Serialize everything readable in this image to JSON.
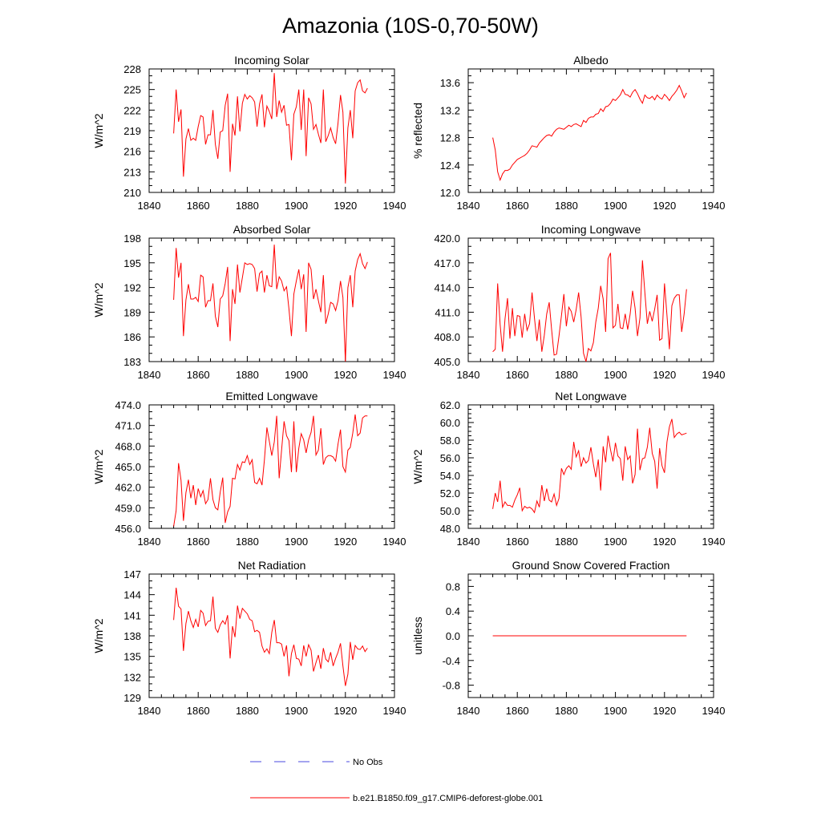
{
  "figure_title": "Amazonia (10S-0,70-50W)",
  "colors": {
    "series": "#ff0000",
    "obs": "#4a4adf",
    "axis": "#000000"
  },
  "legend": {
    "obs_label": "No Obs",
    "model_label": "b.e21.B1850.f09_g17.CMIP6-deforest-globe.001"
  },
  "chart_data": [
    {
      "type": "line",
      "title": "Incoming Solar",
      "ylabel": "W/m^2",
      "xlabel": "",
      "xlim": [
        1840,
        1940
      ],
      "ylim": [
        210,
        228
      ],
      "xticks": [
        1840,
        1860,
        1880,
        1900,
        1920,
        1940
      ],
      "yticks": [
        210,
        213,
        216,
        219,
        222,
        225,
        228
      ],
      "ytick_decimals": 0,
      "yminor": 3,
      "start_year": 1850,
      "values": [
        218.6,
        225.0,
        220.3,
        222.1,
        212.3,
        217.8,
        219.3,
        217.6,
        217.9,
        217.6,
        219.6,
        221.2,
        221.0,
        217.0,
        218.4,
        218.4,
        222.0,
        217.0,
        214.9,
        218.8,
        219.0,
        222.7,
        224.4,
        213.0,
        220.0,
        218.3,
        224.0,
        218.9,
        223.0,
        224.3,
        223.6,
        224.1,
        223.8,
        223.2,
        219.6,
        222.9,
        224.3,
        219.5,
        222.6,
        221.8,
        220.7,
        227.4,
        221.0,
        223.4,
        221.7,
        222.7,
        219.8,
        219.9,
        214.7,
        221.4,
        222.5,
        225.0,
        219.1,
        225.0,
        215.3,
        223.8,
        222.9,
        219.2,
        219.9,
        218.5,
        217.2,
        225.0,
        217.4,
        218.3,
        219.4,
        218.0,
        217.1,
        220.1,
        224.2,
        221.7,
        211.3,
        219.4,
        222.0,
        217.9,
        224.8,
        226.0,
        226.4,
        224.8,
        224.5,
        225.2
      ]
    },
    {
      "type": "line",
      "title": "Albedo",
      "ylabel": "% reflected",
      "xlabel": "",
      "xlim": [
        1840,
        1940
      ],
      "ylim": [
        12.0,
        13.8
      ],
      "xticks": [
        1840,
        1860,
        1880,
        1900,
        1920,
        1940
      ],
      "yticks": [
        12.0,
        12.4,
        12.8,
        13.2,
        13.6
      ],
      "ytick_decimals": 1,
      "yminor": 4,
      "start_year": 1850,
      "values": [
        12.8,
        12.62,
        12.3,
        12.18,
        12.27,
        12.32,
        12.32,
        12.34,
        12.4,
        12.44,
        12.48,
        12.5,
        12.52,
        12.54,
        12.57,
        12.62,
        12.68,
        12.67,
        12.66,
        12.72,
        12.76,
        12.8,
        12.83,
        12.84,
        12.82,
        12.88,
        12.92,
        12.94,
        12.93,
        12.92,
        12.95,
        12.98,
        12.96,
        12.99,
        13.0,
        12.98,
        12.96,
        13.05,
        13.02,
        13.08,
        13.1,
        13.1,
        13.14,
        13.15,
        13.22,
        13.18,
        13.25,
        13.26,
        13.3,
        13.36,
        13.34,
        13.38,
        13.42,
        13.5,
        13.43,
        13.42,
        13.39,
        13.46,
        13.5,
        13.44,
        13.36,
        13.3,
        13.42,
        13.38,
        13.37,
        13.4,
        13.35,
        13.42,
        13.38,
        13.36,
        13.43,
        13.39,
        13.34,
        13.4,
        13.44,
        13.49,
        13.56,
        13.48,
        13.38,
        13.45
      ]
    },
    {
      "type": "line",
      "title": "Absorbed Solar",
      "ylabel": "W/m^2",
      "xlabel": "",
      "xlim": [
        1840,
        1940
      ],
      "ylim": [
        183,
        198
      ],
      "xticks": [
        1840,
        1860,
        1880,
        1900,
        1920,
        1940
      ],
      "yticks": [
        183,
        186,
        189,
        192,
        195,
        198
      ],
      "ytick_decimals": 0,
      "yminor": 3,
      "start_year": 1850,
      "values": [
        190.5,
        196.8,
        193.2,
        195.0,
        186.1,
        190.5,
        192.4,
        190.6,
        190.6,
        190.8,
        190.3,
        193.5,
        193.3,
        189.6,
        190.4,
        190.4,
        192.5,
        188.5,
        187.2,
        190.6,
        191.0,
        192.5,
        194.5,
        185.5,
        191.8,
        190.0,
        194.8,
        191.4,
        193.2,
        195.0,
        194.8,
        194.9,
        194.8,
        194.3,
        191.5,
        193.7,
        194.0,
        191.4,
        193.5,
        192.2,
        192.1,
        197.2,
        191.8,
        193.3,
        192.8,
        191.6,
        192.1,
        189.4,
        186.1,
        191.2,
        192.8,
        194.2,
        191.8,
        193.6,
        186.6,
        195.0,
        194.2,
        190.6,
        191.8,
        190.4,
        189.0,
        193.5,
        187.6,
        188.8,
        190.2,
        190.0,
        189.2,
        190.4,
        192.8,
        190.8,
        183.0,
        192.0,
        193.5,
        189.6,
        194.0,
        195.4,
        196.1,
        194.9,
        194.3,
        195.1
      ]
    },
    {
      "type": "line",
      "title": "Incoming Longwave",
      "ylabel": "",
      "xlabel": "",
      "xlim": [
        1840,
        1940
      ],
      "ylim": [
        405.0,
        420.0
      ],
      "xticks": [
        1840,
        1860,
        1880,
        1900,
        1920,
        1940
      ],
      "yticks": [
        405.0,
        408.0,
        411.0,
        414.0,
        417.0,
        420.0
      ],
      "ytick_decimals": 1,
      "yminor": 3,
      "start_year": 1850,
      "values": [
        406.2,
        406.5,
        414.5,
        409.5,
        406.2,
        410.2,
        412.7,
        407.8,
        411.5,
        408.1,
        410.6,
        410.5,
        407.9,
        410.8,
        408.8,
        409.6,
        413.4,
        410.3,
        407.5,
        410.1,
        406.2,
        408.2,
        410.8,
        412.2,
        408.9,
        405.8,
        405.9,
        408.1,
        410.6,
        413.2,
        409.3,
        411.6,
        411.1,
        409.8,
        411.3,
        413.4,
        410.4,
        406.0,
        405.0,
        406.6,
        406.3,
        407.3,
        409.8,
        411.5,
        414.2,
        412.6,
        408.6,
        417.5,
        418.2,
        409.1,
        409.4,
        412.0,
        409.1,
        409.0,
        410.8,
        408.9,
        410.8,
        413.6,
        411.5,
        408.1,
        410.3,
        417.3,
        413.4,
        409.6,
        411.1,
        409.9,
        411.4,
        413.1,
        407.6,
        407.8,
        414.5,
        410.6,
        406.5,
        411.8,
        412.7,
        413.1,
        413.1,
        408.6,
        410.8,
        413.8
      ]
    },
    {
      "type": "line",
      "title": "Emitted Longwave",
      "ylabel": "W/m^2",
      "xlabel": "",
      "xlim": [
        1840,
        1940
      ],
      "ylim": [
        456.0,
        474.0
      ],
      "xticks": [
        1840,
        1860,
        1880,
        1900,
        1920,
        1940
      ],
      "yticks": [
        456.0,
        459.0,
        462.0,
        465.0,
        468.0,
        471.0,
        474.0
      ],
      "ytick_decimals": 1,
      "yminor": 3,
      "start_year": 1850,
      "values": [
        456.3,
        458.6,
        465.5,
        463.0,
        457.1,
        461.2,
        463.1,
        460.4,
        462.3,
        459.4,
        461.8,
        460.6,
        461.5,
        459.6,
        460.2,
        463.3,
        460.2,
        459.0,
        458.7,
        461.3,
        463.4,
        456.8,
        458.4,
        459.2,
        463.3,
        463.2,
        465.3,
        464.5,
        465.7,
        465.6,
        466.6,
        465.3,
        466.0,
        462.7,
        462.5,
        463.3,
        462.3,
        466.0,
        470.7,
        468.7,
        466.6,
        468.6,
        472.4,
        463.3,
        467.4,
        471.6,
        469.5,
        468.8,
        464.2,
        471.6,
        464.2,
        467.7,
        469.8,
        468.9,
        467.0,
        468.9,
        470.0,
        472.4,
        466.7,
        467.4,
        470.6,
        465.3,
        466.3,
        466.6,
        466.6,
        466.4,
        465.8,
        468.3,
        470.4,
        465.0,
        464.2,
        467.4,
        467.8,
        469.9,
        472.6,
        469.5,
        469.9,
        472.1,
        472.4,
        472.4
      ]
    },
    {
      "type": "line",
      "title": "Net Longwave",
      "ylabel": "W/m^2",
      "xlabel": "",
      "xlim": [
        1840,
        1940
      ],
      "ylim": [
        48.0,
        62.0
      ],
      "xticks": [
        1840,
        1860,
        1880,
        1900,
        1920,
        1940
      ],
      "yticks": [
        48.0,
        50.0,
        52.0,
        54.0,
        56.0,
        58.0,
        60.0,
        62.0
      ],
      "ytick_decimals": 1,
      "yminor": 4,
      "start_year": 1850,
      "values": [
        50.2,
        52.0,
        51.0,
        53.4,
        50.4,
        51.0,
        50.6,
        50.6,
        50.4,
        51.2,
        51.8,
        52.6,
        50.0,
        50.5,
        50.3,
        50.4,
        50.2,
        49.8,
        51.1,
        50.4,
        52.9,
        51.1,
        52.5,
        51.2,
        51.0,
        51.9,
        50.6,
        51.4,
        54.8,
        54.1,
        54.8,
        55.1,
        54.7,
        57.8,
        56.1,
        56.8,
        55.0,
        56.0,
        55.4,
        55.7,
        57.2,
        55.3,
        53.8,
        55.8,
        52.3,
        57.3,
        55.5,
        58.5,
        56.9,
        55.6,
        57.7,
        56.2,
        55.9,
        53.4,
        57.3,
        55.8,
        56.2,
        53.1,
        54.1,
        59.3,
        54.6,
        55.9,
        56.0,
        57.2,
        59.4,
        56.5,
        55.6,
        52.5,
        57.1,
        55.1,
        54.3,
        57.8,
        59.5,
        60.4,
        58.3,
        58.7,
        58.9,
        58.6,
        58.7,
        58.8
      ]
    },
    {
      "type": "line",
      "title": "Net Radiation",
      "ylabel": "W/m^2",
      "xlabel": "",
      "xlim": [
        1840,
        1940
      ],
      "ylim": [
        129,
        147
      ],
      "xticks": [
        1840,
        1860,
        1880,
        1900,
        1920,
        1940
      ],
      "yticks": [
        129,
        132,
        135,
        138,
        141,
        144,
        147
      ],
      "ytick_decimals": 0,
      "yminor": 3,
      "start_year": 1850,
      "values": [
        140.3,
        145.0,
        142.3,
        141.9,
        135.8,
        139.8,
        141.6,
        140.2,
        139.2,
        140.4,
        139.3,
        141.7,
        141.3,
        139.5,
        140.1,
        140.2,
        143.7,
        139.1,
        138.5,
        139.6,
        140.2,
        139.7,
        141.0,
        134.7,
        139.4,
        137.8,
        142.4,
        140.5,
        142.0,
        141.6,
        141.2,
        140.4,
        140.2,
        138.6,
        138.8,
        138.5,
        136.5,
        135.6,
        136.1,
        135.4,
        138.5,
        140.3,
        137.0,
        137.0,
        136.8,
        135.0,
        136.6,
        132.1,
        135.4,
        136.7,
        134.7,
        134.6,
        133.6,
        136.6,
        135.0,
        136.7,
        135.9,
        132.8,
        134.1,
        135.2,
        133.2,
        136.2,
        134.6,
        134.2,
        135.6,
        133.6,
        134.7,
        135.6,
        136.9,
        133.6,
        130.7,
        132.4,
        137.1,
        134.5,
        136.6,
        136.1,
        136.0,
        136.5,
        135.7,
        136.2
      ]
    },
    {
      "type": "line",
      "title": "Ground Snow Covered Fraction",
      "ylabel": "unitless",
      "xlabel": "",
      "xlim": [
        1840,
        1940
      ],
      "ylim": [
        -1.0,
        1.0
      ],
      "xticks": [
        1840,
        1860,
        1880,
        1900,
        1920,
        1940
      ],
      "yticks": [
        -0.8,
        -0.4,
        0.0,
        0.4,
        0.8
      ],
      "ytick_decimals": 1,
      "yminor": 4,
      "start_year": 1850,
      "values": [
        0.0,
        0.0,
        0.0,
        0.0,
        0.0,
        0.0,
        0.0,
        0.0,
        0.0,
        0.0,
        0.0,
        0.0,
        0.0,
        0.0,
        0.0,
        0.0,
        0.0,
        0.0,
        0.0,
        0.0,
        0.0,
        0.0,
        0.0,
        0.0,
        0.0,
        0.0,
        0.0,
        0.0,
        0.0,
        0.0,
        0.0,
        0.0,
        0.0,
        0.0,
        0.0,
        0.0,
        0.0,
        0.0,
        0.0,
        0.0,
        0.0,
        0.0,
        0.0,
        0.0,
        0.0,
        0.0,
        0.0,
        0.0,
        0.0,
        0.0,
        0.0,
        0.0,
        0.0,
        0.0,
        0.0,
        0.0,
        0.0,
        0.0,
        0.0,
        0.0,
        0.0,
        0.0,
        0.0,
        0.0,
        0.0,
        0.0,
        0.0,
        0.0,
        0.0,
        0.0,
        0.0,
        0.0,
        0.0,
        0.0,
        0.0,
        0.0,
        0.0,
        0.0,
        0.0,
        0.0
      ]
    }
  ]
}
